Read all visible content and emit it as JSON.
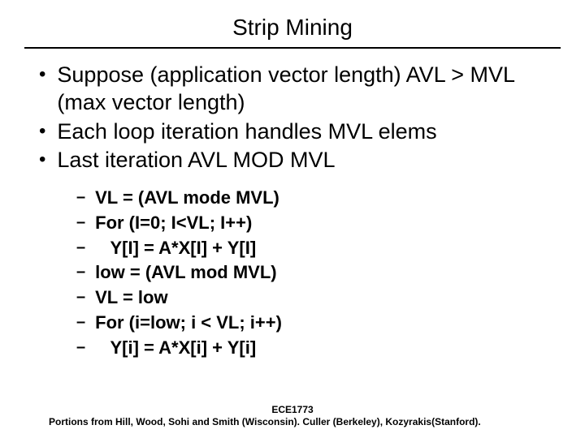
{
  "title": "Strip Mining",
  "bullets": [
    "Suppose (application vector length) AVL > MVL (max vector length)",
    "Each loop iteration handles MVL elems",
    "Last iteration AVL MOD MVL"
  ],
  "subitems": [
    "VL = (AVL mode MVL)",
    "For (I=0; I<VL; I++)",
    "   Y[I] = A*X[I] + Y[I]",
    "low = (AVL mod MVL)",
    "VL = low",
    "For (i=low; i < VL; i++)",
    "   Y[i] = A*X[i] + Y[i]"
  ],
  "footer": {
    "line1": "ECE1773",
    "line2": "Portions from Hill, Wood, Sohi and Smith (Wisconsin). Culler (Berkeley), Kozyrakis(Stanford)."
  }
}
